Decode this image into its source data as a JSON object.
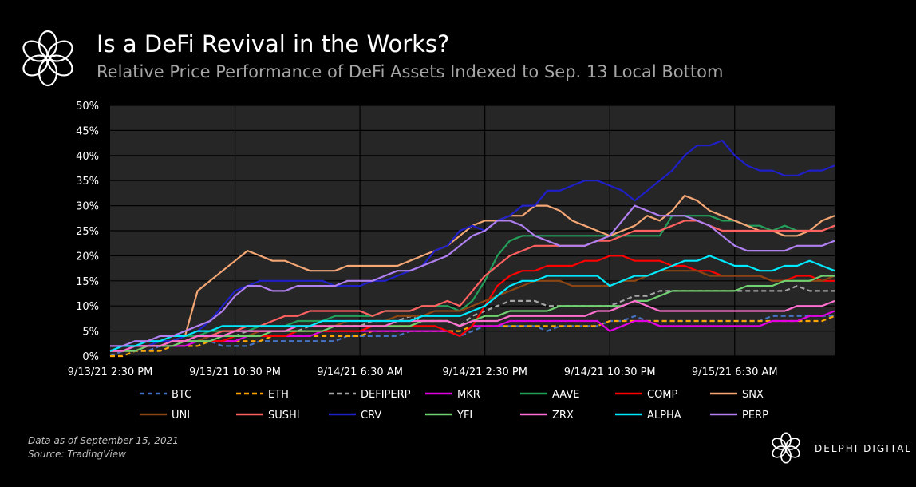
{
  "header": {
    "title": "Is a DeFi Revival in the Works?",
    "subtitle": "Relative Price Performance of DeFi Assets Indexed to Sep. 13 Local Bottom"
  },
  "footer": {
    "note": "Data as of September 15, 2021",
    "source": "Source: TradingView",
    "brand": "DELPHI DIGITAL"
  },
  "logo_icon": "delphi-flower-logo-icon",
  "chart_data": {
    "type": "line",
    "title": "",
    "xlabel": "",
    "ylabel": "",
    "ylim": [
      0,
      50
    ],
    "xlim": [
      0,
      58
    ],
    "y_ticks": [
      "0%",
      "5%",
      "10%",
      "15%",
      "20%",
      "25%",
      "30%",
      "35%",
      "40%",
      "45%",
      "50%"
    ],
    "x_ticks": [
      {
        "x": 0,
        "label": "9/13/21 2:30 PM"
      },
      {
        "x": 10,
        "label": "9/13/21 10:30 PM"
      },
      {
        "x": 20,
        "label": "9/14/21 6:30 AM"
      },
      {
        "x": 30,
        "label": "9/14/21 2:30 PM"
      },
      {
        "x": 40,
        "label": "9/14/21 10:30 PM"
      },
      {
        "x": 50,
        "label": "9/15/21 6:30 AM"
      }
    ],
    "background": "#262626",
    "grid": true,
    "legend_position": "bottom",
    "series": [
      {
        "name": "BTC",
        "color": "#4472c4",
        "dash": true,
        "values": [
          0,
          1,
          1,
          1,
          2,
          2,
          2,
          2,
          3,
          2,
          2,
          2,
          3,
          3,
          3,
          3,
          3,
          3,
          3,
          4,
          4,
          4,
          4,
          4,
          5,
          5,
          5,
          5,
          4,
          5,
          6,
          6,
          6,
          6,
          6,
          5,
          6,
          6,
          6,
          6,
          7,
          7,
          8,
          7,
          7,
          7,
          7,
          7,
          7,
          7,
          7,
          7,
          7,
          8,
          8,
          8,
          8,
          8,
          8
        ]
      },
      {
        "name": "ETH",
        "color": "#ffa500",
        "dash": true,
        "values": [
          0,
          0,
          1,
          1,
          1,
          2,
          2,
          2,
          3,
          3,
          3,
          3,
          3,
          4,
          4,
          4,
          4,
          4,
          4,
          4,
          4,
          5,
          5,
          5,
          5,
          5,
          5,
          5,
          5,
          6,
          6,
          6,
          6,
          6,
          6,
          6,
          6,
          6,
          6,
          6,
          7,
          7,
          7,
          7,
          7,
          7,
          7,
          7,
          7,
          7,
          7,
          7,
          7,
          7,
          7,
          7,
          7,
          7,
          8
        ]
      },
      {
        "name": "DEFIPERP",
        "color": "#a6a6a6",
        "dash": true,
        "values": [
          1,
          1,
          2,
          2,
          2,
          3,
          3,
          3,
          4,
          4,
          4,
          5,
          5,
          5,
          5,
          5,
          6,
          6,
          6,
          6,
          6,
          7,
          7,
          7,
          8,
          7,
          7,
          7,
          6,
          8,
          9,
          10,
          11,
          11,
          11,
          10,
          10,
          10,
          10,
          10,
          10,
          11,
          12,
          12,
          13,
          13,
          13,
          13,
          13,
          13,
          13,
          13,
          13,
          13,
          13,
          14,
          13,
          13,
          13
        ]
      },
      {
        "name": "MKR",
        "color": "#e000e0",
        "dash": false,
        "values": [
          1,
          1,
          1,
          2,
          2,
          2,
          2,
          3,
          3,
          3,
          3,
          4,
          4,
          4,
          4,
          4,
          4,
          5,
          5,
          5,
          5,
          5,
          5,
          5,
          5,
          5,
          5,
          5,
          4,
          6,
          6,
          6,
          7,
          7,
          7,
          7,
          7,
          7,
          7,
          7,
          5,
          6,
          7,
          7,
          6,
          6,
          6,
          6,
          6,
          6,
          6,
          6,
          6,
          7,
          7,
          7,
          8,
          8,
          9
        ]
      },
      {
        "name": "AAVE",
        "color": "#22a05a",
        "dash": false,
        "values": [
          1,
          1,
          2,
          2,
          3,
          3,
          4,
          4,
          5,
          5,
          5,
          5,
          6,
          6,
          6,
          7,
          7,
          7,
          8,
          8,
          8,
          8,
          9,
          9,
          9,
          10,
          10,
          10,
          9,
          11,
          15,
          20,
          23,
          24,
          24,
          24,
          24,
          24,
          24,
          24,
          24,
          24,
          24,
          24,
          24,
          28,
          28,
          28,
          28,
          27,
          27,
          26,
          26,
          25,
          26,
          25,
          25,
          25,
          26
        ]
      },
      {
        "name": "COMP",
        "color": "#ff0000",
        "dash": false,
        "values": [
          1,
          1,
          1,
          2,
          2,
          2,
          3,
          3,
          3,
          3,
          4,
          4,
          4,
          4,
          4,
          5,
          5,
          5,
          5,
          5,
          5,
          6,
          6,
          6,
          6,
          6,
          6,
          5,
          4,
          6,
          10,
          14,
          16,
          17,
          17,
          18,
          18,
          18,
          19,
          19,
          20,
          20,
          19,
          19,
          19,
          18,
          18,
          17,
          17,
          16,
          16,
          16,
          16,
          15,
          15,
          16,
          16,
          15,
          15
        ]
      },
      {
        "name": "SNX",
        "color": "#f4a674",
        "dash": false,
        "values": [
          1,
          1,
          2,
          2,
          3,
          3,
          4,
          13,
          15,
          17,
          19,
          21,
          20,
          19,
          19,
          18,
          17,
          17,
          17,
          18,
          18,
          18,
          18,
          18,
          19,
          20,
          21,
          22,
          24,
          26,
          27,
          27,
          28,
          28,
          30,
          30,
          29,
          27,
          26,
          25,
          24,
          25,
          26,
          28,
          27,
          29,
          32,
          31,
          29,
          28,
          27,
          26,
          25,
          25,
          24,
          24,
          25,
          27,
          28
        ]
      },
      {
        "name": "UNI",
        "color": "#8b4513",
        "dash": false,
        "values": [
          1,
          1,
          1,
          2,
          2,
          3,
          3,
          3,
          4,
          4,
          4,
          4,
          5,
          5,
          5,
          6,
          6,
          6,
          6,
          7,
          7,
          7,
          7,
          8,
          8,
          8,
          9,
          9,
          9,
          10,
          11,
          12,
          13,
          14,
          15,
          15,
          15,
          14,
          14,
          14,
          14,
          15,
          15,
          16,
          17,
          17,
          17,
          17,
          16,
          16,
          16,
          16,
          16,
          15,
          15,
          15,
          15,
          15,
          16
        ]
      },
      {
        "name": "SUSHI",
        "color": "#ff6060",
        "dash": false,
        "values": [
          1,
          1,
          2,
          2,
          2,
          3,
          3,
          4,
          4,
          5,
          5,
          6,
          6,
          7,
          8,
          8,
          9,
          9,
          9,
          9,
          9,
          8,
          9,
          9,
          9,
          10,
          10,
          11,
          10,
          13,
          16,
          18,
          20,
          21,
          22,
          22,
          22,
          22,
          22,
          23,
          23,
          24,
          25,
          25,
          25,
          26,
          27,
          27,
          26,
          25,
          25,
          25,
          25,
          25,
          25,
          25,
          25,
          25,
          26
        ]
      },
      {
        "name": "CRV",
        "color": "#1f1fc8",
        "dash": false,
        "values": [
          1,
          1,
          2,
          2,
          3,
          3,
          4,
          5,
          7,
          10,
          13,
          14,
          15,
          15,
          15,
          15,
          15,
          15,
          14,
          14,
          14,
          15,
          15,
          16,
          17,
          18,
          21,
          22,
          25,
          26,
          25,
          27,
          28,
          30,
          30,
          33,
          33,
          34,
          35,
          35,
          34,
          33,
          31,
          33,
          35,
          37,
          40,
          42,
          42,
          43,
          40,
          38,
          37,
          37,
          36,
          36,
          37,
          37,
          38
        ]
      },
      {
        "name": "YFI",
        "color": "#6fd16f",
        "dash": false,
        "values": [
          1,
          1,
          1,
          2,
          2,
          2,
          3,
          3,
          3,
          4,
          4,
          4,
          4,
          5,
          5,
          5,
          5,
          5,
          6,
          6,
          6,
          6,
          6,
          6,
          6,
          7,
          7,
          7,
          6,
          7,
          8,
          8,
          9,
          9,
          9,
          9,
          10,
          10,
          10,
          10,
          10,
          10,
          11,
          11,
          12,
          13,
          13,
          13,
          13,
          13,
          13,
          14,
          14,
          14,
          15,
          15,
          15,
          16,
          16
        ]
      },
      {
        "name": "ZRX",
        "color": "#ff6fcf",
        "dash": false,
        "values": [
          1,
          1,
          2,
          2,
          2,
          3,
          3,
          4,
          4,
          4,
          5,
          5,
          5,
          5,
          5,
          6,
          6,
          6,
          6,
          6,
          6,
          6,
          6,
          7,
          7,
          7,
          7,
          7,
          6,
          7,
          7,
          7,
          8,
          8,
          8,
          8,
          8,
          8,
          8,
          9,
          9,
          10,
          11,
          10,
          9,
          9,
          9,
          9,
          9,
          9,
          9,
          9,
          9,
          9,
          9,
          10,
          10,
          10,
          11
        ]
      },
      {
        "name": "ALPHA",
        "color": "#00eaff",
        "dash": false,
        "values": [
          1,
          2,
          2,
          3,
          3,
          4,
          4,
          5,
          5,
          6,
          6,
          6,
          6,
          6,
          6,
          6,
          6,
          7,
          7,
          7,
          7,
          7,
          7,
          7,
          7,
          8,
          8,
          8,
          8,
          9,
          10,
          12,
          14,
          15,
          15,
          16,
          16,
          16,
          16,
          16,
          14,
          15,
          16,
          16,
          17,
          18,
          19,
          19,
          20,
          19,
          18,
          18,
          17,
          17,
          18,
          18,
          19,
          18,
          17
        ]
      },
      {
        "name": "PERP",
        "color": "#b07ff0",
        "dash": false,
        "values": [
          2,
          2,
          3,
          3,
          4,
          4,
          5,
          6,
          7,
          9,
          12,
          14,
          14,
          13,
          13,
          14,
          14,
          14,
          14,
          15,
          15,
          15,
          16,
          17,
          17,
          18,
          19,
          20,
          22,
          24,
          25,
          27,
          27,
          26,
          24,
          23,
          22,
          22,
          22,
          23,
          24,
          27,
          30,
          29,
          28,
          28,
          28,
          27,
          26,
          24,
          22,
          21,
          21,
          21,
          21,
          22,
          22,
          22,
          23
        ]
      }
    ]
  }
}
